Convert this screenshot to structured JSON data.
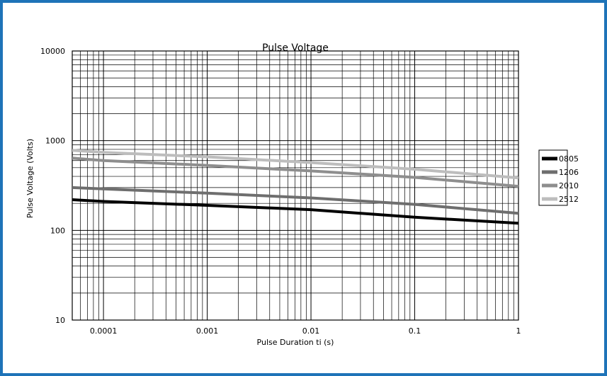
{
  "chart_data": {
    "type": "line",
    "title": "Pulse Voltage",
    "xlabel": "Pulse Duration ti (s)",
    "ylabel": "Pulse Voltage (Volts)",
    "x_scale": "log",
    "y_scale": "log",
    "xlim": [
      5e-05,
      1
    ],
    "ylim": [
      10,
      10000
    ],
    "x_ticks": [
      0.0001,
      0.001,
      0.01,
      0.1,
      1
    ],
    "x_tick_labels": [
      "0.0001",
      "0.001",
      "0.01",
      "0.1",
      "1"
    ],
    "y_ticks": [
      10,
      100,
      1000,
      10000
    ],
    "y_tick_labels": [
      "10",
      "100",
      "1000",
      "10000"
    ],
    "grid": true,
    "legend_position": "right",
    "x": [
      5e-05,
      0.0001,
      0.001,
      0.01,
      0.1,
      1
    ],
    "series": [
      {
        "name": "0805",
        "color": "#000000",
        "values": [
          220,
          210,
          190,
          170,
          140,
          120
        ]
      },
      {
        "name": "1206",
        "color": "#6e6e6e",
        "values": [
          300,
          290,
          260,
          230,
          195,
          155
        ]
      },
      {
        "name": "2010",
        "color": "#8e8e8e",
        "values": [
          640,
          600,
          530,
          460,
          390,
          310
        ]
      },
      {
        "name": "2512",
        "color": "#bdbdbd",
        "values": [
          780,
          740,
          660,
          570,
          480,
          385
        ]
      }
    ]
  }
}
